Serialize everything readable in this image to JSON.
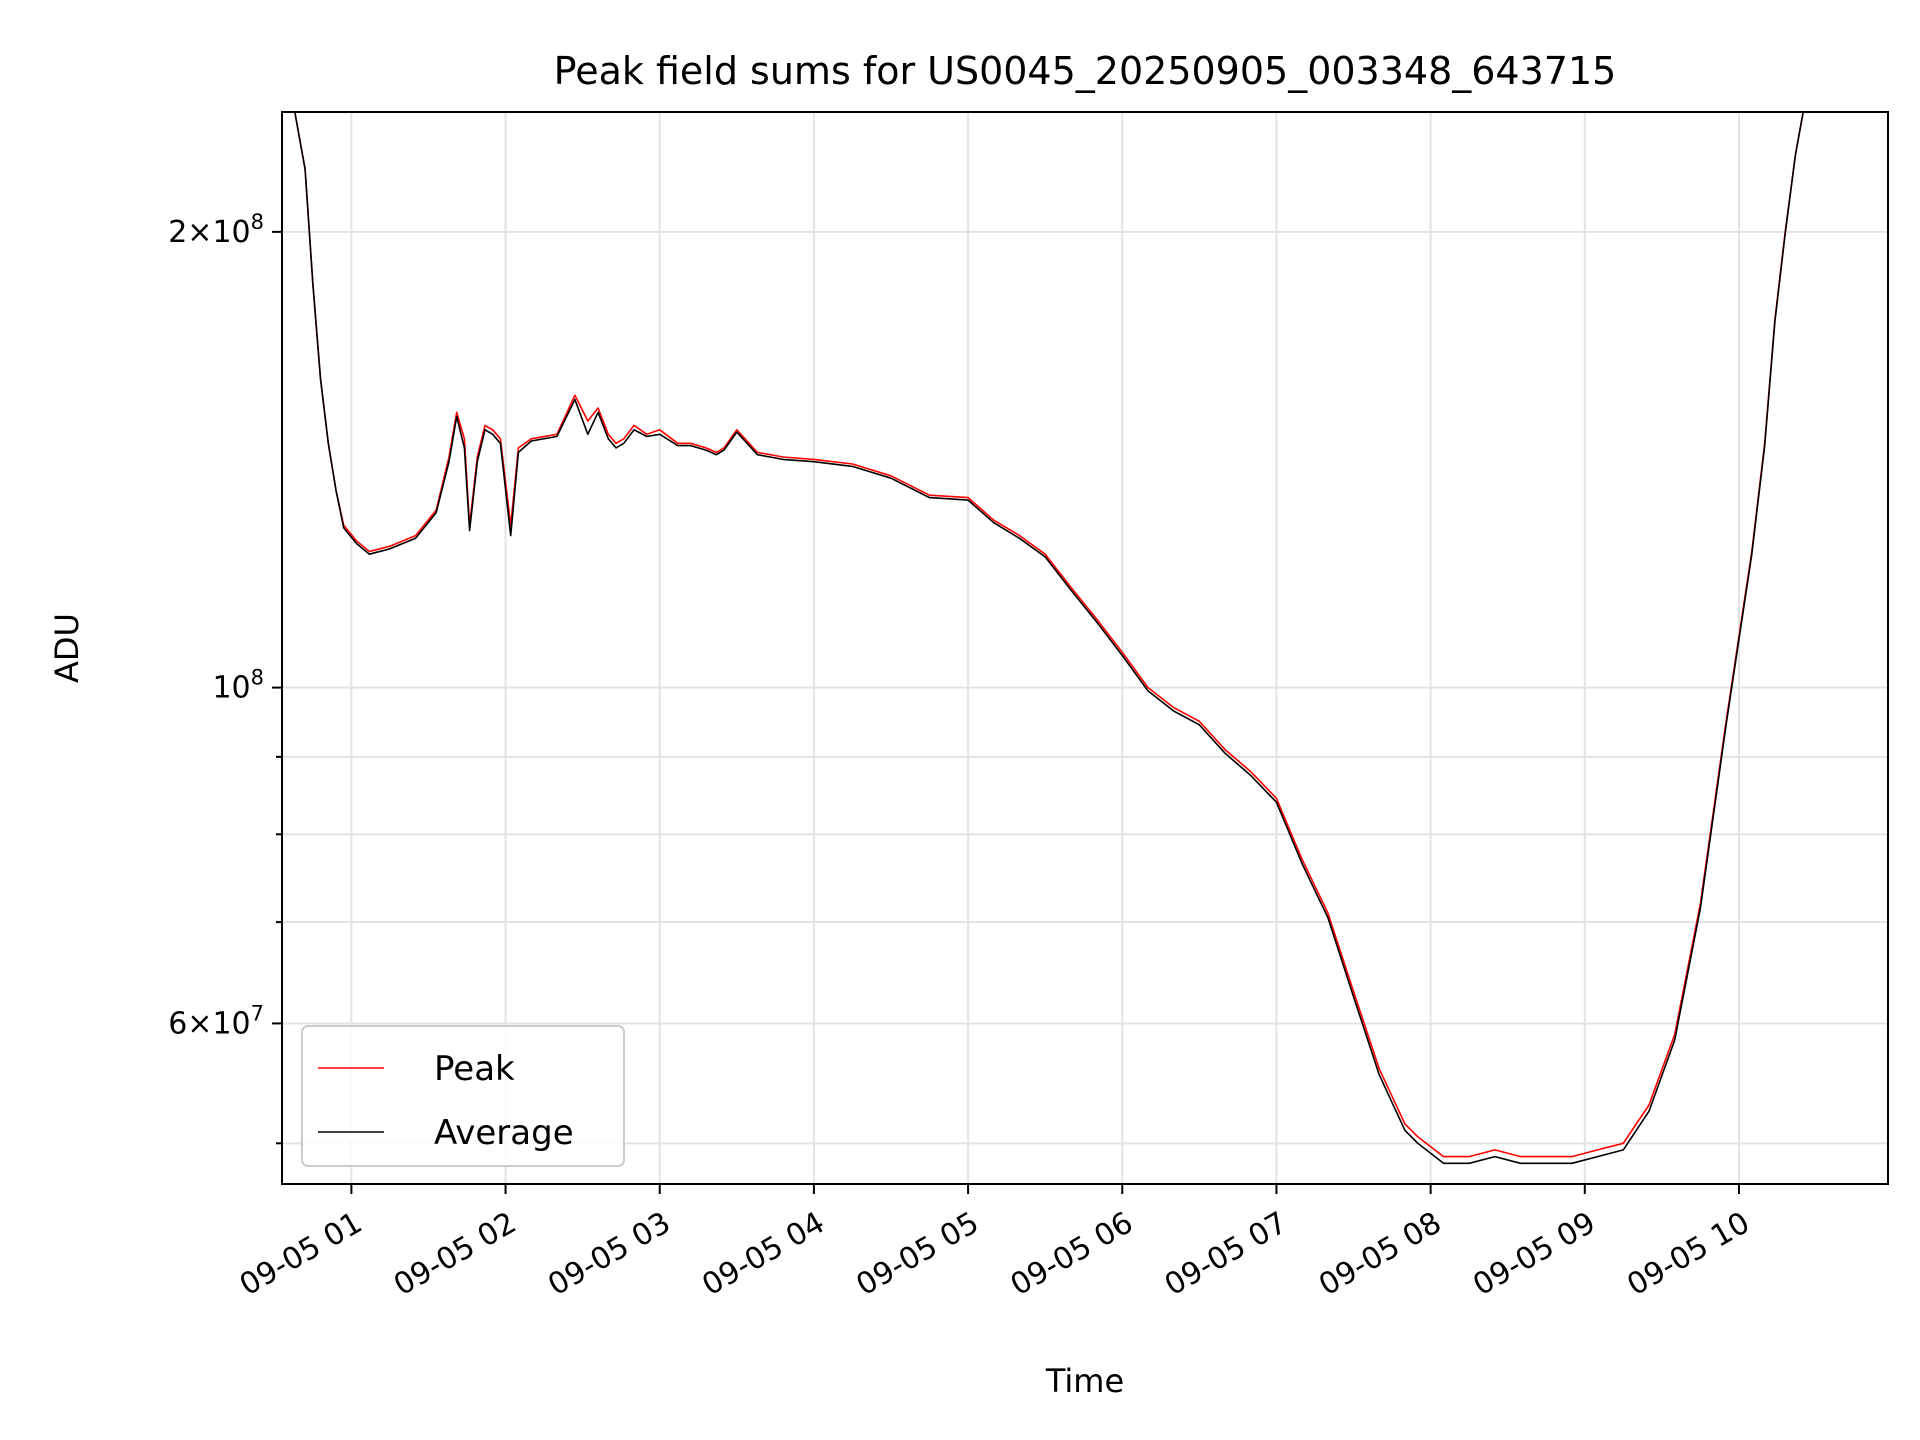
{
  "chart_data": {
    "type": "line",
    "title": "Peak field sums for US0045_20250905_003348_643715",
    "xlabel": "Time",
    "ylabel": "ADU",
    "yscale": "log",
    "ylim": [
      47000000,
      240000000
    ],
    "xlim": [
      "2025-09-05 00:33",
      "2025-09-05 10:58"
    ],
    "grid": true,
    "legend_position": "lower-left",
    "x_ticks": [
      "09-05 01",
      "09-05 02",
      "09-05 03",
      "09-05 04",
      "09-05 05",
      "09-05 06",
      "09-05 07",
      "09-05 08",
      "09-05 09",
      "09-05 10"
    ],
    "x_tick_times": [
      "2025-09-05 01:00",
      "2025-09-05 02:00",
      "2025-09-05 03:00",
      "2025-09-05 04:00",
      "2025-09-05 05:00",
      "2025-09-05 06:00",
      "2025-09-05 07:00",
      "2025-09-05 08:00",
      "2025-09-05 09:00",
      "2025-09-05 10:00"
    ],
    "y_major_ticks": [
      {
        "value": 60000000,
        "mantissa": "6",
        "exponent": "7"
      },
      {
        "value": 100000000,
        "mantissa": "",
        "exponent": "8"
      },
      {
        "value": 200000000,
        "mantissa": "2",
        "exponent": "8"
      }
    ],
    "y_minor_ticks": [
      50000000,
      70000000,
      80000000,
      90000000,
      300000000
    ],
    "x": [
      "2025-09-05 00:33",
      "2025-09-05 00:38",
      "2025-09-05 00:42",
      "2025-09-05 00:45",
      "2025-09-05 00:48",
      "2025-09-05 00:51",
      "2025-09-05 00:54",
      "2025-09-05 00:57",
      "2025-09-05 01:02",
      "2025-09-05 01:07",
      "2025-09-05 01:15",
      "2025-09-05 01:25",
      "2025-09-05 01:33",
      "2025-09-05 01:38",
      "2025-09-05 01:41",
      "2025-09-05 01:44",
      "2025-09-05 01:46",
      "2025-09-05 01:49",
      "2025-09-05 01:52",
      "2025-09-05 01:55",
      "2025-09-05 01:58",
      "2025-09-05 02:02",
      "2025-09-05 02:05",
      "2025-09-05 02:10",
      "2025-09-05 02:20",
      "2025-09-05 02:27",
      "2025-09-05 02:32",
      "2025-09-05 02:36",
      "2025-09-05 02:40",
      "2025-09-05 02:43",
      "2025-09-05 02:46",
      "2025-09-05 02:50",
      "2025-09-05 02:55",
      "2025-09-05 03:00",
      "2025-09-05 03:07",
      "2025-09-05 03:12",
      "2025-09-05 03:18",
      "2025-09-05 03:22",
      "2025-09-05 03:25",
      "2025-09-05 03:30",
      "2025-09-05 03:38",
      "2025-09-05 03:48",
      "2025-09-05 04:00",
      "2025-09-05 04:15",
      "2025-09-05 04:30",
      "2025-09-05 04:45",
      "2025-09-05 05:00",
      "2025-09-05 05:10",
      "2025-09-05 05:20",
      "2025-09-05 05:30",
      "2025-09-05 05:40",
      "2025-09-05 05:50",
      "2025-09-05 06:00",
      "2025-09-05 06:10",
      "2025-09-05 06:20",
      "2025-09-05 06:30",
      "2025-09-05 06:40",
      "2025-09-05 06:50",
      "2025-09-05 07:00",
      "2025-09-05 07:10",
      "2025-09-05 07:20",
      "2025-09-05 07:30",
      "2025-09-05 07:40",
      "2025-09-05 07:50",
      "2025-09-05 07:55",
      "2025-09-05 08:05",
      "2025-09-05 08:15",
      "2025-09-05 08:25",
      "2025-09-05 08:35",
      "2025-09-05 08:45",
      "2025-09-05 08:55",
      "2025-09-05 09:05",
      "2025-09-05 09:15",
      "2025-09-05 09:25",
      "2025-09-05 09:35",
      "2025-09-05 09:45",
      "2025-09-05 09:55",
      "2025-09-05 10:05",
      "2025-09-05 10:10",
      "2025-09-05 10:14",
      "2025-09-05 10:18",
      "2025-09-05 10:22",
      "2025-09-05 10:25",
      "2025-09-05 10:28",
      "2025-09-05 10:32",
      "2025-09-05 10:35",
      "2025-09-05 10:39",
      "2025-09-05 10:43",
      "2025-09-05 10:50",
      "2025-09-05 10:58"
    ],
    "series": [
      {
        "name": "Peak",
        "color": "#ff0000",
        "values": [
          240000000,
          240000000,
          220000000,
          185000000,
          160000000,
          145000000,
          135000000,
          128000000,
          125000000,
          123000000,
          124000000,
          126000000,
          131000000,
          142000000,
          152000000,
          146000000,
          128000000,
          142000000,
          149000000,
          148000000,
          146000000,
          128000000,
          144000000,
          146000000,
          147000000,
          156000000,
          150000000,
          153000000,
          147000000,
          145000000,
          146000000,
          149000000,
          147000000,
          148000000,
          145000000,
          145000000,
          144000000,
          143000000,
          144000000,
          148000000,
          143000000,
          142000000,
          141500000,
          140500000,
          138000000,
          134000000,
          133500000,
          129000000,
          126000000,
          122500000,
          116500000,
          111000000,
          105500000,
          100000000,
          97000000,
          95000000,
          91000000,
          88000000,
          84500000,
          77000000,
          71000000,
          63000000,
          56000000,
          51500000,
          50500000,
          49000000,
          49000000,
          49500000,
          49000000,
          49000000,
          49000000,
          49500000,
          50000000,
          53000000,
          59000000,
          72000000,
          95000000,
          123000000,
          145000000,
          175000000,
          200000000,
          225000000,
          240000000,
          240000000,
          240000000,
          240000000,
          240000000,
          240000000,
          240000000,
          240000000
        ]
      },
      {
        "name": "Average",
        "color": "#000000",
        "values": [
          240000000,
          240000000,
          220000000,
          185000000,
          160000000,
          145000000,
          135000000,
          127500000,
          124500000,
          122500000,
          123500000,
          125500000,
          130500000,
          141000000,
          151000000,
          144000000,
          127000000,
          141000000,
          148000000,
          147000000,
          145000000,
          126000000,
          143000000,
          145500000,
          146500000,
          155000000,
          147000000,
          152000000,
          146000000,
          144000000,
          145000000,
          148000000,
          146500000,
          147000000,
          144500000,
          144500000,
          143500000,
          142500000,
          143500000,
          147500000,
          142500000,
          141500000,
          141000000,
          140000000,
          137500000,
          133500000,
          133000000,
          128500000,
          125500000,
          122000000,
          116000000,
          110500000,
          105000000,
          99500000,
          96500000,
          94500000,
          90500000,
          87500000,
          84000000,
          76500000,
          70500000,
          62500000,
          55500000,
          51000000,
          50000000,
          48500000,
          48500000,
          49000000,
          48500000,
          48500000,
          48500000,
          49000000,
          49500000,
          52500000,
          58500000,
          71500000,
          94500000,
          122500000,
          144500000,
          174500000,
          199500000,
          225000000,
          240000000,
          240000000,
          240000000,
          240000000,
          240000000,
          240000000,
          240000000,
          240000000
        ]
      }
    ]
  }
}
